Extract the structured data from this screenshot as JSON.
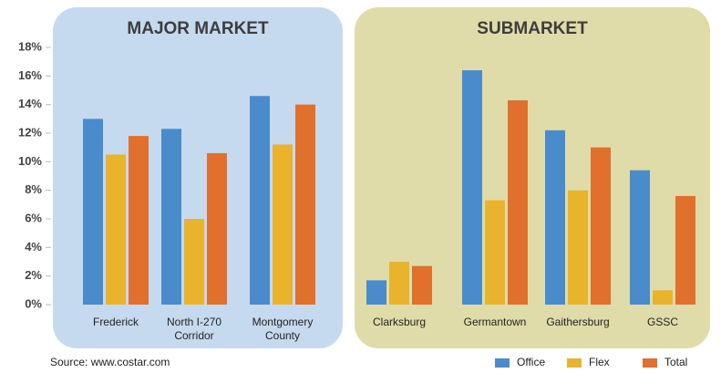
{
  "chart_data": {
    "type": "bar",
    "groups": [
      "MAJOR MARKET",
      "SUBMARKET"
    ],
    "categories": [
      "Frederick",
      [
        "North I-270",
        "Corridor"
      ],
      [
        "Montgomery",
        "County"
      ],
      "Clarksburg",
      "Germantown",
      "Gaithersburg",
      "GSSC"
    ],
    "series": [
      {
        "name": "Office",
        "color": "#4a8bcb",
        "values": [
          13.0,
          12.3,
          14.6,
          1.7,
          16.4,
          12.2,
          9.4
        ]
      },
      {
        "name": "Flex",
        "color": "#e9b42c",
        "values": [
          10.5,
          6.0,
          11.2,
          3.0,
          7.3,
          8.0,
          1.0
        ]
      },
      {
        "name": "Total",
        "color": "#e0702b",
        "values": [
          11.8,
          10.6,
          14.0,
          2.7,
          14.3,
          11.0,
          7.6
        ]
      }
    ],
    "ylim": [
      0,
      18
    ],
    "yticks": [
      {
        "value": 0,
        "label": "0%"
      },
      {
        "value": 2,
        "label": "2%"
      },
      {
        "value": 4,
        "label": "4%"
      },
      {
        "value": 6,
        "label": "6%"
      },
      {
        "value": 8,
        "label": "8%"
      },
      {
        "value": 10,
        "label": "10%"
      },
      {
        "value": 12,
        "label": "12%"
      },
      {
        "value": 14,
        "label": "14%"
      },
      {
        "value": 16,
        "label": "16%"
      },
      {
        "value": 18,
        "label": "18%"
      }
    ],
    "source": "Source: www.costar.com",
    "legend": "bottom-right"
  }
}
